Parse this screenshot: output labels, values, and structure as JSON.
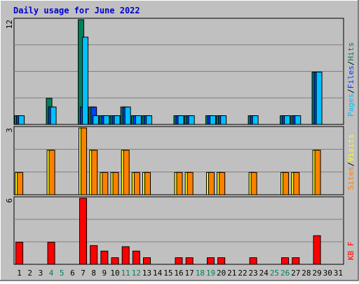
{
  "title": "Daily usage for June 2022",
  "colors": {
    "background": "#c0c0c0",
    "title": "#0000cc",
    "hits": "#00805c",
    "files": "#0040ff",
    "pages": "#00c0ff",
    "visits": "#ffff00",
    "sites": "#ff8000",
    "kbytes": "#ff0000",
    "weekend_day": "#00805c",
    "weekday": "#000000"
  },
  "legend": {
    "top": [
      {
        "text": "Pages",
        "color": "#00c0ff"
      },
      {
        "text": "/",
        "color": "#000000"
      },
      {
        "text": "Files",
        "color": "#0040ff"
      },
      {
        "text": "/",
        "color": "#000000"
      },
      {
        "text": "Hits",
        "color": "#00805c"
      }
    ],
    "middle": [
      {
        "text": "Sites",
        "color": "#ff8000"
      },
      {
        "text": "/",
        "color": "#000000"
      },
      {
        "text": "Visits",
        "color": "#ffff00"
      }
    ],
    "bottom": [
      {
        "text": "KB F",
        "color": "#ff0000"
      }
    ]
  },
  "chart_data": {
    "type": "bar",
    "title": "Daily usage for June 2022",
    "categories": [
      "1",
      "2",
      "3",
      "4",
      "5",
      "6",
      "7",
      "8",
      "9",
      "10",
      "11",
      "12",
      "13",
      "14",
      "15",
      "16",
      "17",
      "18",
      "19",
      "20",
      "21",
      "22",
      "23",
      "24",
      "25",
      "26",
      "27",
      "28",
      "29",
      "30",
      "31"
    ],
    "weekend_days": [
      "4",
      "5",
      "11",
      "12",
      "18",
      "19",
      "25",
      "26"
    ],
    "panels": [
      {
        "name": "hits-files-pages",
        "ymax_label": "12",
        "ymax": 12,
        "series": [
          {
            "name": "Hits",
            "values": [
              1,
              0,
              0,
              3,
              0,
              0,
              12,
              2,
              1,
              1,
              2,
              1,
              1,
              0,
              0,
              1,
              1,
              0,
              1,
              1,
              0,
              0,
              1,
              0,
              0,
              1,
              1,
              0,
              6,
              0,
              0
            ]
          },
          {
            "name": "Files",
            "values": [
              1,
              0,
              0,
              2,
              0,
              0,
              2,
              2,
              1,
              1,
              2,
              1,
              1,
              0,
              0,
              1,
              1,
              0,
              1,
              1,
              0,
              0,
              1,
              0,
              0,
              1,
              1,
              0,
              6,
              0,
              0
            ]
          },
          {
            "name": "Pages",
            "values": [
              1,
              0,
              0,
              2,
              0,
              0,
              10,
              1,
              1,
              1,
              2,
              1,
              1,
              0,
              0,
              1,
              1,
              0,
              1,
              1,
              0,
              0,
              1,
              0,
              0,
              1,
              1,
              0,
              6,
              0,
              0
            ]
          }
        ]
      },
      {
        "name": "visits-sites",
        "ymax_label": "3",
        "ymax": 3,
        "series": [
          {
            "name": "Visits",
            "values": [
              1,
              0,
              0,
              2,
              0,
              0,
              3,
              2,
              1,
              1,
              2,
              1,
              1,
              0,
              0,
              1,
              1,
              0,
              1,
              1,
              0,
              0,
              1,
              0,
              0,
              1,
              1,
              0,
              2,
              0,
              0
            ]
          },
          {
            "name": "Sites",
            "values": [
              1,
              0,
              0,
              2,
              0,
              0,
              3,
              2,
              1,
              1,
              2,
              1,
              1,
              0,
              0,
              1,
              1,
              0,
              1,
              1,
              0,
              0,
              1,
              0,
              0,
              1,
              1,
              0,
              2,
              0,
              0
            ]
          }
        ]
      },
      {
        "name": "kbytes",
        "ymax_label": "6",
        "ymax": 6,
        "series": [
          {
            "name": "KBytes",
            "values": [
              2.0,
              0,
              0,
              2.0,
              0,
              0,
              6.0,
              1.7,
              1.2,
              0.6,
              1.6,
              1.2,
              0.6,
              0,
              0,
              0.6,
              0.6,
              0,
              0.6,
              0.6,
              0,
              0,
              0.6,
              0,
              0,
              0.6,
              0.6,
              0,
              2.6,
              0,
              0
            ]
          }
        ]
      }
    ]
  }
}
